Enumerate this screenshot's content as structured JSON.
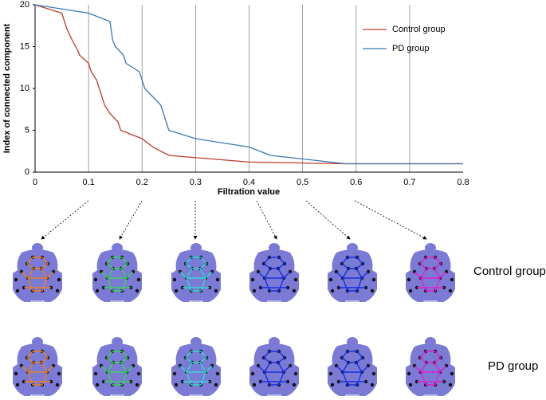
{
  "chart_data": {
    "type": "line",
    "xlabel": "Filtration value",
    "ylabel": "Index of connected component",
    "xlim": [
      0,
      0.8
    ],
    "xticks": [
      0,
      0.1,
      0.2,
      0.3,
      0.4,
      0.5,
      0.6,
      0.7,
      0.8
    ],
    "ylim": [
      0,
      20
    ],
    "yticks": [
      0,
      5,
      10,
      15,
      20
    ],
    "grid": true,
    "legend": "upper right",
    "series": [
      {
        "name": "Control group",
        "color": "#c0392b",
        "x": [
          0,
          0.05,
          0.06,
          0.07,
          0.08,
          0.083,
          0.1,
          0.105,
          0.115,
          0.125,
          0.13,
          0.14,
          0.155,
          0.16,
          0.2,
          0.22,
          0.25,
          0.4,
          0.58,
          0.8
        ],
        "values": [
          20,
          19,
          17,
          15.7,
          14.5,
          14,
          13,
          12,
          11,
          9,
          8,
          7,
          6,
          5,
          4,
          3,
          2,
          1.2,
          1,
          1
        ]
      },
      {
        "name": "PD group",
        "color": "#3a78b5",
        "x": [
          0,
          0.1,
          0.14,
          0.145,
          0.15,
          0.165,
          0.17,
          0.195,
          0.2,
          0.205,
          0.22,
          0.235,
          0.245,
          0.25,
          0.3,
          0.4,
          0.44,
          0.58,
          0.8
        ],
        "values": [
          20,
          19,
          18,
          15.8,
          15,
          14,
          13,
          12,
          11,
          10,
          9,
          8,
          6,
          5,
          4,
          3,
          2,
          1,
          1
        ]
      }
    ]
  }
}
